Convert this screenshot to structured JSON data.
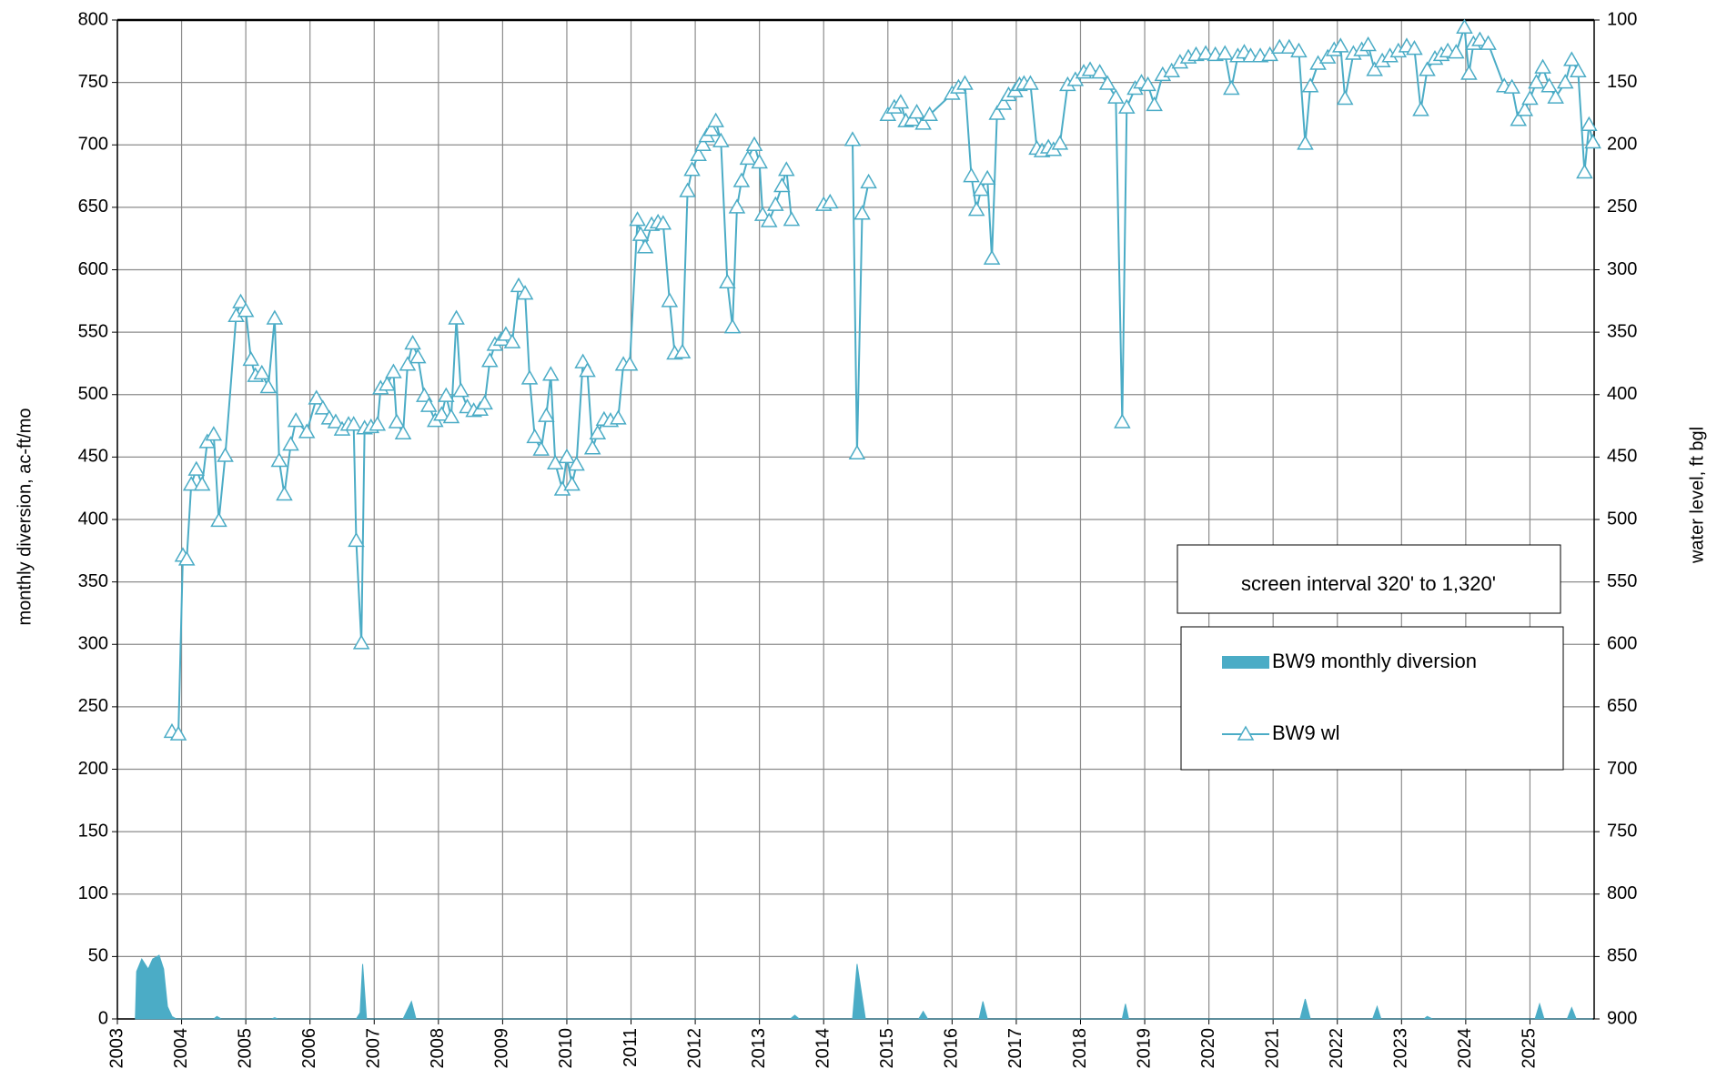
{
  "chart_data": {
    "type": "line",
    "y_label": "monthly diversion, ac-ft/mo",
    "y2_label": "water level, ft bgl",
    "annotation": "screen interval 320' to 1,320'",
    "xlim": [
      2003,
      2026
    ],
    "xticks": [
      2003,
      2004,
      2005,
      2006,
      2007,
      2008,
      2009,
      2010,
      2011,
      2012,
      2013,
      2014,
      2015,
      2016,
      2017,
      2018,
      2019,
      2020,
      2021,
      2022,
      2023,
      2024,
      2025
    ],
    "ylim": [
      0,
      800
    ],
    "yticks": [
      0,
      50,
      100,
      150,
      200,
      250,
      300,
      350,
      400,
      450,
      500,
      550,
      600,
      650,
      700,
      750,
      800
    ],
    "y2lim": [
      900,
      100
    ],
    "y2ticks": [
      900,
      850,
      800,
      750,
      700,
      650,
      600,
      550,
      500,
      450,
      400,
      350,
      300,
      250,
      200,
      150,
      100
    ],
    "grid": true,
    "series": [
      {
        "name": "BW9 monthly diversion",
        "type": "area",
        "color": "#4bacc6",
        "x": [
          2003.28,
          2003.3,
          2003.38,
          2003.48,
          2003.55,
          2003.65,
          2003.72,
          2003.78,
          2003.85,
          2003.92,
          2004.5,
          2004.55,
          2004.62,
          2005.4,
          2005.45,
          2005.5,
          2006.72,
          2006.78,
          2006.82,
          2006.88,
          2007.45,
          2007.58,
          2007.65,
          2013.48,
          2013.55,
          2013.62,
          2014.45,
          2014.52,
          2014.65,
          2015.48,
          2015.55,
          2015.62,
          2016.42,
          2016.48,
          2016.55,
          2018.65,
          2018.7,
          2018.75,
          2021.42,
          2021.5,
          2021.58,
          2022.55,
          2022.62,
          2022.68,
          2023.35,
          2023.4,
          2023.48,
          2025.08,
          2025.15,
          2025.22,
          2025.58,
          2025.65,
          2025.72,
          2025.98
        ],
        "values": [
          0,
          38,
          48,
          40,
          48,
          51,
          40,
          10,
          2,
          0,
          0,
          2,
          0,
          0,
          1,
          0,
          0,
          5,
          44,
          0,
          0,
          14,
          0,
          0,
          3,
          0,
          0,
          44,
          0,
          0,
          6,
          0,
          0,
          14,
          0,
          0,
          12,
          0,
          0,
          16,
          0,
          0,
          10,
          0,
          0,
          2,
          0,
          0,
          12,
          0,
          0,
          9,
          0,
          0
        ]
      },
      {
        "name": "BW9 wl",
        "type": "line",
        "axis": "y2",
        "color": "#4bacc6",
        "marker": "triangle",
        "x": [
          2003.85,
          2003.95,
          2004.02,
          2004.08,
          2004.15,
          2004.23,
          2004.32,
          2004.4,
          2004.5,
          2004.58,
          2004.68,
          2004.85,
          2004.92,
          2005.0,
          2005.08,
          2005.15,
          2005.25,
          2005.35,
          2005.45,
          2005.52,
          2005.6,
          2005.7,
          2005.78,
          2005.95,
          2006.1,
          2006.2,
          2006.3,
          2006.4,
          2006.5,
          2006.6,
          2006.68,
          2006.72,
          2006.8,
          2006.85,
          2006.95,
          2007.05,
          2007.1,
          2007.2,
          2007.3,
          2007.35,
          2007.45,
          2007.52,
          2007.6,
          2007.68,
          2007.78,
          2007.85,
          2007.95,
          2008.05,
          2008.12,
          2008.2,
          2008.28,
          2008.35,
          2008.45,
          2008.55,
          2008.65,
          2008.72,
          2008.8,
          2008.88,
          2008.98,
          2009.05,
          2009.15,
          2009.25,
          2009.35,
          2009.42,
          2009.5,
          2009.6,
          2009.68,
          2009.75,
          2009.82,
          2009.93,
          2010.0,
          2010.08,
          2010.15,
          2010.25,
          2010.32,
          2010.4,
          2010.48,
          2010.58,
          2010.68,
          2010.8,
          2010.88,
          2010.98,
          2011.1,
          2011.15,
          2011.22,
          2011.32,
          2011.42,
          2011.5,
          2011.6,
          2011.68,
          2011.8,
          2011.88,
          2011.95,
          2012.05,
          2012.12,
          2012.18,
          2012.25,
          2012.32,
          2012.4,
          2012.5,
          2012.58,
          2012.65,
          2012.72,
          2012.82,
          2012.92,
          2013.0,
          2013.05,
          2013.15,
          2013.25,
          2013.35,
          2013.42,
          2013.5,
          2013.75,
          2014.0,
          2014.1,
          2014.3,
          2014.45,
          2014.52,
          2014.6,
          2014.7,
          2014.85,
          2015.0,
          2015.1,
          2015.2,
          2015.28,
          2015.38,
          2015.45,
          2015.55,
          2015.65,
          2016.0,
          2016.1,
          2016.2,
          2016.3,
          2016.38,
          2016.45,
          2016.55,
          2016.62,
          2016.7,
          2016.8,
          2016.88,
          2016.98,
          2017.05,
          2017.12,
          2017.22,
          2017.32,
          2017.4,
          2017.5,
          2017.58,
          2017.68,
          2017.8,
          2017.92,
          2018.05,
          2018.15,
          2018.3,
          2018.42,
          2018.55,
          2018.65,
          2018.72,
          2018.85,
          2018.95,
          2019.05,
          2019.15,
          2019.28,
          2019.42,
          2019.55,
          2019.68,
          2019.8,
          2019.95,
          2020.1,
          2020.25,
          2020.35,
          2020.45,
          2020.55,
          2020.65,
          2020.8,
          2020.95,
          2021.1,
          2021.25,
          2021.4,
          2021.5,
          2021.58,
          2021.7,
          2021.85,
          2021.95,
          2022.05,
          2022.12,
          2022.25,
          2022.38,
          2022.48,
          2022.58,
          2022.7,
          2022.82,
          2022.95,
          2023.08,
          2023.2,
          2023.3,
          2023.4,
          2023.52,
          2023.62,
          2023.72,
          2023.85,
          2023.98,
          2024.05,
          2024.12,
          2024.22,
          2024.35,
          2024.6,
          2024.72,
          2024.82,
          2024.92,
          2025.0,
          2025.1,
          2025.2,
          2025.3,
          2025.4,
          2025.55,
          2025.65,
          2025.75,
          2025.85,
          2025.92,
          2025.98
        ],
        "values": [
          670,
          672,
          529,
          532,
          472,
          460,
          472,
          438,
          432,
          501,
          449,
          337,
          326,
          333,
          372,
          385,
          383,
          394,
          339,
          453,
          480,
          440,
          421,
          430,
          403,
          411,
          419,
          422,
          428,
          424,
          424,
          517,
          599,
          427,
          426,
          424,
          395,
          392,
          382,
          422,
          431,
          376,
          359,
          370,
          401,
          409,
          421,
          416,
          401,
          418,
          339,
          397,
          410,
          413,
          412,
          407,
          373,
          360,
          356,
          352,
          358,
          313,
          319,
          387,
          434,
          444,
          417,
          384,
          455,
          476,
          450,
          472,
          456,
          374,
          381,
          443,
          431,
          420,
          421,
          419,
          376,
          376,
          260,
          272,
          282,
          264,
          262,
          263,
          325,
          367,
          366,
          237,
          220,
          208,
          200,
          193,
          188,
          181,
          197,
          310,
          346,
          250,
          229,
          211,
          200,
          214,
          256,
          261,
          248,
          233,
          220,
          260,
          null,
          248,
          246,
          null,
          196,
          447,
          255,
          230,
          null,
          176,
          170,
          166,
          181,
          180,
          174,
          183,
          176,
          159,
          154,
          151,
          225,
          252,
          236,
          227,
          291,
          175,
          167,
          160,
          157,
          152,
          151,
          151,
          203,
          205,
          202,
          204,
          199,
          152,
          148,
          142,
          140,
          142,
          151,
          162,
          422,
          170,
          155,
          150,
          152,
          168,
          144,
          141,
          134,
          130,
          128,
          127,
          128,
          127,
          155,
          129,
          126,
          129,
          129,
          128,
          122,
          122,
          125,
          199,
          153,
          135,
          130,
          124,
          121,
          163,
          127,
          124,
          120,
          140,
          133,
          129,
          125,
          121,
          123,
          172,
          140,
          131,
          128,
          125,
          126,
          106,
          143,
          119,
          116,
          119,
          153,
          154,
          180,
          172,
          163,
          150,
          138,
          153,
          162,
          150,
          132,
          141,
          222,
          184,
          198
        ]
      }
    ]
  }
}
